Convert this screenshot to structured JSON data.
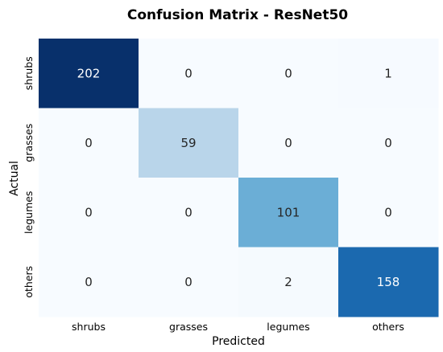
{
  "chart_data": {
    "type": "heatmap",
    "title": "Confusion Matrix - ResNet50",
    "xlabel": "Predicted",
    "ylabel": "Actual",
    "x_categories": [
      "shrubs",
      "grasses",
      "legumes",
      "others"
    ],
    "y_categories": [
      "shrubs",
      "grasses",
      "legumes",
      "others"
    ],
    "values": [
      [
        202,
        0,
        0,
        1
      ],
      [
        0,
        59,
        0,
        0
      ],
      [
        0,
        0,
        101,
        0
      ],
      [
        0,
        0,
        2,
        158
      ]
    ],
    "colormap": "Blues",
    "colorbar": false,
    "grid": false
  }
}
